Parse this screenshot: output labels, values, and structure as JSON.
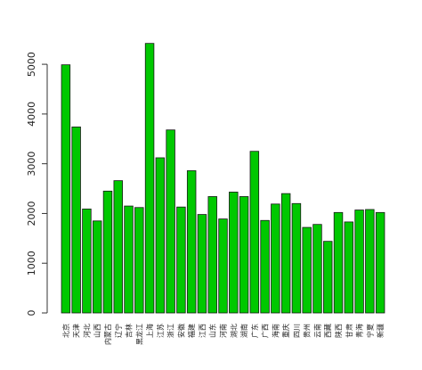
{
  "chart_data": {
    "type": "bar",
    "title": "",
    "xlabel": "",
    "ylabel": "",
    "ylim": [
      0,
      5500
    ],
    "yticks": [
      0,
      1000,
      2000,
      3000,
      4000,
      5000
    ],
    "grid": false,
    "bar_color": "#00c800",
    "bar_border_color": "#1a1a1a",
    "categories": [
      "北京",
      "天津",
      "河北",
      "山西",
      "内蒙古",
      "辽宁",
      "吉林",
      "黑龙江",
      "上海",
      "江苏",
      "浙江",
      "安徽",
      "福建",
      "江西",
      "山东",
      "河南",
      "湖北",
      "湖南",
      "广东",
      "广西",
      "海南",
      "重庆",
      "四川",
      "贵州",
      "云南",
      "西藏",
      "陕西",
      "甘肃",
      "青海",
      "宁夏",
      "新疆"
    ],
    "values": [
      4990,
      3740,
      2090,
      1850,
      2450,
      2660,
      2150,
      2120,
      5420,
      3120,
      3680,
      2130,
      2860,
      1980,
      2340,
      1890,
      2430,
      2340,
      3250,
      1860,
      2190,
      2400,
      2200,
      1720,
      1780,
      1440,
      2020,
      1830,
      2070,
      2080,
      2020
    ]
  }
}
